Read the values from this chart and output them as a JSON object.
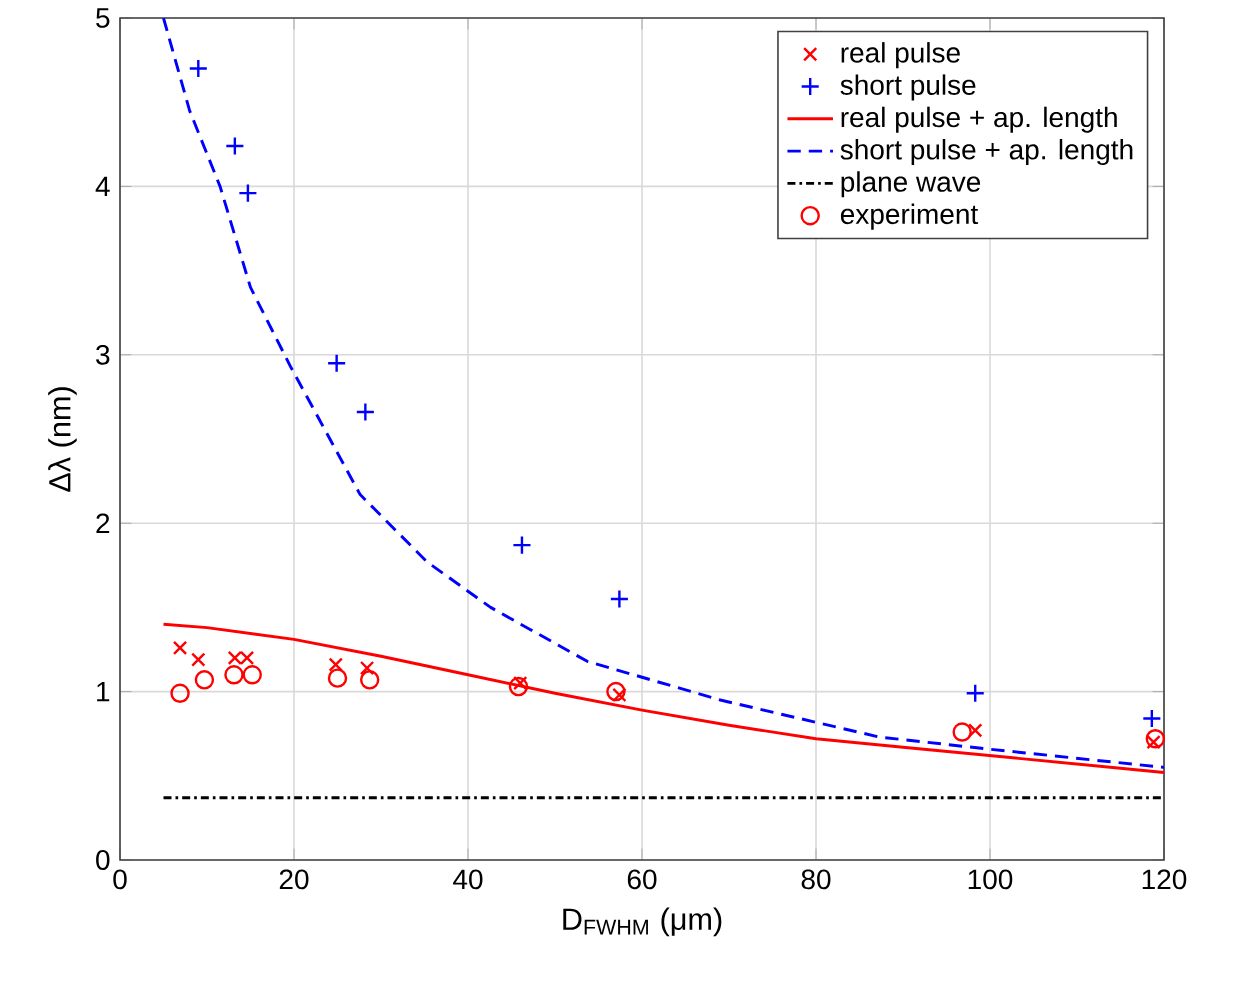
{
  "chart_data": {
    "type": "scatter",
    "xlabel": "D$_{FWHM}$ (μm)",
    "ylabel": "Δλ (nm)",
    "xlim": [
      0,
      120
    ],
    "ylim": [
      0,
      5
    ],
    "xticks": [
      0,
      20,
      40,
      60,
      80,
      100,
      120
    ],
    "yticks": [
      0,
      1,
      2,
      3,
      4,
      5
    ],
    "grid": true,
    "legend": "top right",
    "series": [
      {
        "name": "real pulse",
        "marker": "cross",
        "color": "#ff0000",
        "x": [
          6.9,
          9.0,
          13.2,
          14.6,
          24.8,
          28.4,
          46.0,
          57.4,
          98.3,
          118.8
        ],
        "values": [
          1.26,
          1.19,
          1.2,
          1.2,
          1.16,
          1.14,
          1.05,
          0.98,
          0.77,
          0.7
        ]
      },
      {
        "name": "short pulse",
        "marker": "plus",
        "color": "#0000ff",
        "x": [
          9.0,
          13.2,
          14.7,
          24.9,
          28.2,
          46.2,
          57.4,
          98.3,
          118.6
        ],
        "values": [
          4.7,
          4.24,
          3.96,
          2.95,
          2.66,
          1.87,
          1.55,
          0.99,
          0.84
        ]
      },
      {
        "name": "real pulse + ap. length",
        "type": "line",
        "line_style": "solid",
        "color": "#ff0000",
        "x": [
          5,
          10,
          20,
          30,
          40,
          50,
          60,
          70,
          80,
          90,
          100,
          110,
          120
        ],
        "values": [
          1.4,
          1.38,
          1.31,
          1.21,
          1.1,
          0.99,
          0.89,
          0.8,
          0.72,
          0.67,
          0.62,
          0.57,
          0.52
        ]
      },
      {
        "name": "short pulse + ap. length",
        "type": "line",
        "line_style": "dashed",
        "color": "#0000ff",
        "x": [
          5,
          8,
          11.5,
          15,
          19.6,
          27.6,
          35.3,
          42.6,
          53.7,
          69,
          87.3,
          99.6,
          120
        ],
        "values": [
          5.0,
          4.45,
          4.0,
          3.4,
          2.93,
          2.17,
          1.77,
          1.5,
          1.18,
          0.95,
          0.73,
          0.66,
          0.55
        ]
      },
      {
        "name": "plane wave",
        "type": "line",
        "line_style": "dashdot",
        "color": "#000000",
        "x": [
          5,
          120
        ],
        "values": [
          0.37,
          0.37
        ]
      },
      {
        "name": "experiment",
        "marker": "circle",
        "color": "#ff0000",
        "x": [
          6.9,
          9.7,
          13.1,
          15.2,
          25.0,
          28.7,
          45.8,
          57.0,
          96.8,
          119.0
        ],
        "values": [
          0.99,
          1.07,
          1.1,
          1.1,
          1.08,
          1.07,
          1.03,
          1.0,
          0.76,
          0.72
        ]
      }
    ]
  }
}
